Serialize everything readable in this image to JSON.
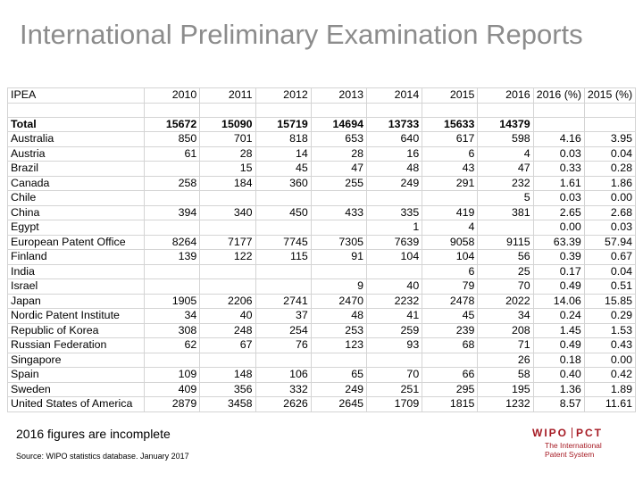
{
  "title": "International Preliminary Examination Reports",
  "columns": [
    "IPEA",
    "2010",
    "2011",
    "2012",
    "2013",
    "2014",
    "2015",
    "2016",
    "2016 (%)",
    "2015 (%)"
  ],
  "total_row": [
    "Total",
    "15672",
    "15090",
    "15719",
    "14694",
    "13733",
    "15633",
    "14379",
    "",
    ""
  ],
  "rows": [
    [
      "Australia",
      "850",
      "701",
      "818",
      "653",
      "640",
      "617",
      "598",
      "4.16",
      "3.95"
    ],
    [
      "Austria",
      "61",
      "28",
      "14",
      "28",
      "16",
      "6",
      "4",
      "0.03",
      "0.04"
    ],
    [
      "Brazil",
      "",
      "15",
      "45",
      "47",
      "48",
      "43",
      "47",
      "0.33",
      "0.28"
    ],
    [
      "Canada",
      "258",
      "184",
      "360",
      "255",
      "249",
      "291",
      "232",
      "1.61",
      "1.86"
    ],
    [
      "Chile",
      "",
      "",
      "",
      "",
      "",
      "",
      "5",
      "0.03",
      "0.00"
    ],
    [
      "China",
      "394",
      "340",
      "450",
      "433",
      "335",
      "419",
      "381",
      "2.65",
      "2.68"
    ],
    [
      "Egypt",
      "",
      "",
      "",
      "",
      "1",
      "4",
      "",
      "0.00",
      "0.03"
    ],
    [
      "European Patent Office",
      "8264",
      "7177",
      "7745",
      "7305",
      "7639",
      "9058",
      "9115",
      "63.39",
      "57.94"
    ],
    [
      "Finland",
      "139",
      "122",
      "115",
      "91",
      "104",
      "104",
      "56",
      "0.39",
      "0.67"
    ],
    [
      "India",
      "",
      "",
      "",
      "",
      "",
      "6",
      "25",
      "0.17",
      "0.04"
    ],
    [
      "Israel",
      "",
      "",
      "",
      "9",
      "40",
      "79",
      "70",
      "0.49",
      "0.51"
    ],
    [
      "Japan",
      "1905",
      "2206",
      "2741",
      "2470",
      "2232",
      "2478",
      "2022",
      "14.06",
      "15.85"
    ],
    [
      "Nordic Patent Institute",
      "34",
      "40",
      "37",
      "48",
      "41",
      "45",
      "34",
      "0.24",
      "0.29"
    ],
    [
      "Republic of Korea",
      "308",
      "248",
      "254",
      "253",
      "259",
      "239",
      "208",
      "1.45",
      "1.53"
    ],
    [
      "Russian Federation",
      "62",
      "67",
      "76",
      "123",
      "93",
      "68",
      "71",
      "0.49",
      "0.43"
    ],
    [
      "Singapore",
      "",
      "",
      "",
      "",
      "",
      "",
      "26",
      "0.18",
      "0.00"
    ],
    [
      "Spain",
      "109",
      "148",
      "106",
      "65",
      "70",
      "66",
      "58",
      "0.40",
      "0.42"
    ],
    [
      "Sweden",
      "409",
      "356",
      "332",
      "249",
      "251",
      "295",
      "195",
      "1.36",
      "1.89"
    ],
    [
      "United States of America",
      "2879",
      "3458",
      "2626",
      "2645",
      "1709",
      "1815",
      "1232",
      "8.57",
      "11.61"
    ]
  ],
  "note": "2016 figures are incomplete",
  "source": "Source: WIPO statistics database. January 2017",
  "logo": {
    "main_left": "WIPO",
    "main_right": "PCT",
    "sub_line1": "The International",
    "sub_line2": "Patent System"
  },
  "colors": {
    "title": "#8c8c8c",
    "grid": "#d4d4d4",
    "logo": "#a61b24"
  }
}
